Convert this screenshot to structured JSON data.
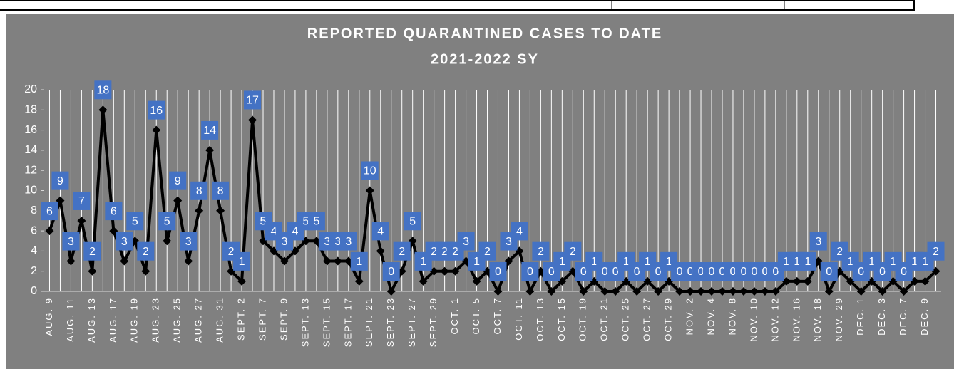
{
  "chart_data": {
    "type": "line",
    "title": "REPORTED QUARANTINED CASES TO DATE",
    "subtitle": "2021-2022 SY",
    "categories": [
      "AUG. 9",
      null,
      "AUG. 11",
      null,
      "AUG. 13",
      null,
      "AUG. 17",
      null,
      "AUG. 19",
      null,
      "AUG. 23",
      null,
      "AUG. 25",
      null,
      "AUG. 27",
      null,
      "AUG. 31",
      null,
      "SEPT. 2",
      null,
      "SEPT. 7",
      null,
      "SEPT. 9",
      null,
      "SEPT. 13",
      null,
      "SEPT. 15",
      null,
      "SEPT. 17",
      null,
      "SEPT. 21",
      null,
      "SEPT. 23",
      null,
      "SEPT. 27",
      null,
      "SEPT. 29",
      null,
      "OCT. 1",
      null,
      "OCT. 5",
      null,
      "OCT. 7",
      null,
      "OCT. 11",
      null,
      "OCT. 13",
      null,
      "OCT. 15",
      null,
      "OCT. 19",
      null,
      "OCT. 21",
      null,
      "OCT. 25",
      null,
      "OCT. 27",
      null,
      "OCT. 29",
      null,
      "NOV. 2",
      null,
      "NOV. 4",
      null,
      "NOV. 8",
      null,
      "NOV. 10",
      null,
      "NOV. 12",
      null,
      "NOV. 16",
      null,
      "NOV. 18",
      null,
      "NOV. 29",
      null,
      "DEC. 1",
      null,
      "DEC. 3",
      null,
      "DEC. 7",
      null,
      "DEC. 9",
      null
    ],
    "values": [
      6,
      9,
      3,
      7,
      2,
      18,
      6,
      3,
      5,
      2,
      16,
      5,
      9,
      3,
      8,
      14,
      8,
      2,
      1,
      17,
      5,
      4,
      3,
      4,
      5,
      5,
      3,
      3,
      3,
      1,
      10,
      4,
      0,
      2,
      5,
      1,
      2,
      2,
      2,
      3,
      1,
      2,
      0,
      3,
      4,
      0,
      2,
      0,
      1,
      2,
      0,
      1,
      0,
      0,
      1,
      0,
      1,
      0,
      1,
      0,
      0,
      0,
      0,
      0,
      0,
      0,
      0,
      0,
      0,
      1,
      1,
      1,
      3,
      0,
      2,
      1,
      0,
      1,
      0,
      1,
      0,
      1,
      1,
      2
    ],
    "color": "#000000",
    "label_color": "#4472c4",
    "ylim": [
      0,
      20
    ],
    "yticks": [
      0,
      2,
      4,
      6,
      8,
      10,
      12,
      14,
      16,
      18,
      20
    ],
    "grid": true
  }
}
